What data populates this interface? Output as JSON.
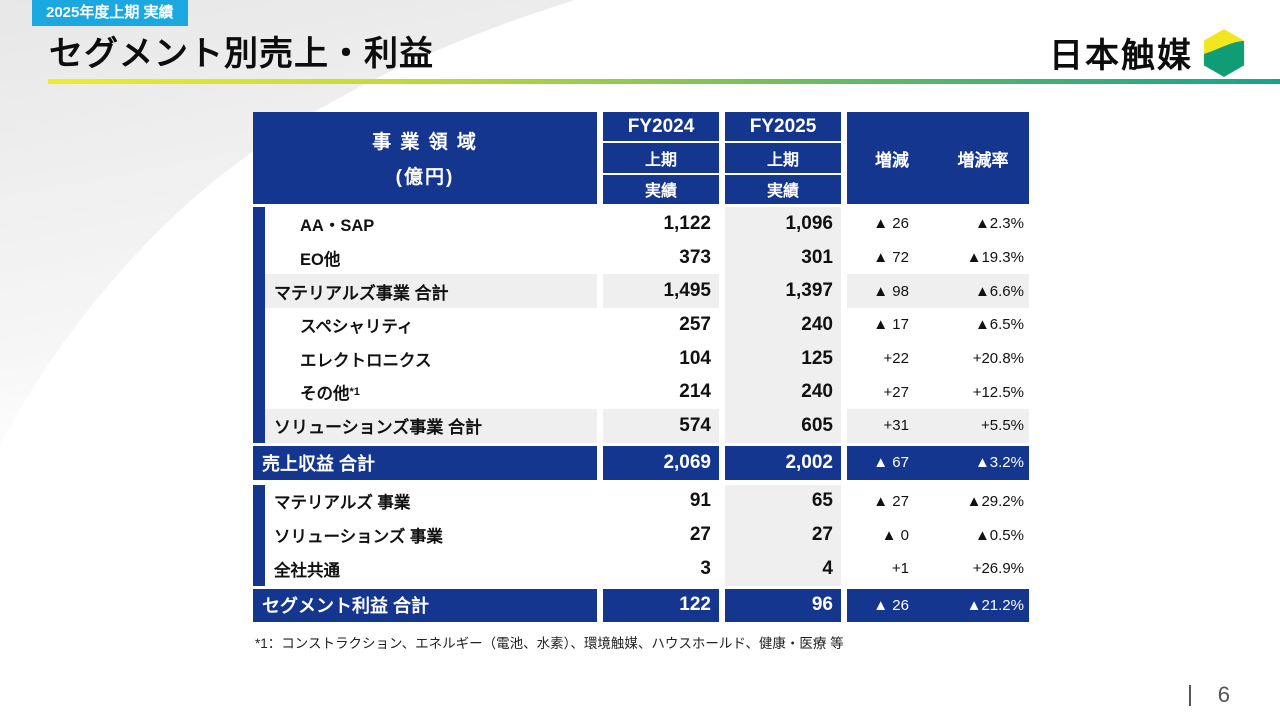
{
  "page": {
    "badge": "2025年度上期 実績",
    "title": "セグメント別売上・利益",
    "logo_text": "日本触媒",
    "footnote": "*1：コンストラクション、エネルギー（電池、水素）、環境触媒、ハウスホールド、健康・医療 等",
    "page_number": "6"
  },
  "colors": {
    "navy": "#15368E",
    "badge_blue": "#1BA7E0",
    "row_gray": "#EFEFEF",
    "rule_gradient": [
      "#EFED27",
      "#17A38C"
    ],
    "logo_yellow": "#F2E71E",
    "logo_green": "#0E9D74"
  },
  "table": {
    "header": {
      "domain_title": "事 業 領 域",
      "domain_unit": "(億円)",
      "fy2024": {
        "year": "FY2024",
        "period": "上期",
        "type": "実績"
      },
      "fy2025": {
        "year": "FY2025",
        "period": "上期",
        "type": "実績"
      },
      "delta_label": "増減",
      "delta_rate_label": "増減率"
    },
    "rows": [
      {
        "label": "AA・SAP",
        "fy2024": "1,122",
        "fy2025": "1,096",
        "delta": "▲ 26",
        "rate": "▲2.3%",
        "style": "indent"
      },
      {
        "label": "EO他",
        "fy2024": "373",
        "fy2025": "301",
        "delta": "▲ 72",
        "rate": "▲19.3%",
        "style": "indent"
      },
      {
        "label": "マテリアルズ事業 合計",
        "fy2024": "1,495",
        "fy2025": "1,397",
        "delta": "▲ 98",
        "rate": "▲6.6%",
        "style": "subtotal"
      },
      {
        "label": "スペシャリティ",
        "fy2024": "257",
        "fy2025": "240",
        "delta": "▲ 17",
        "rate": "▲6.5%",
        "style": "indent"
      },
      {
        "label": "エレクトロニクス",
        "fy2024": "104",
        "fy2025": "125",
        "delta": "+22",
        "rate": "+20.8%",
        "style": "indent"
      },
      {
        "label": "その他",
        "label_sup": "*1",
        "fy2024": "214",
        "fy2025": "240",
        "delta": "+27",
        "rate": "+12.5%",
        "style": "indent"
      },
      {
        "label": "ソリューションズ事業 合計",
        "fy2024": "574",
        "fy2025": "605",
        "delta": "+31",
        "rate": "+5.5%",
        "style": "subtotal"
      },
      {
        "label": "売上収益 合計",
        "fy2024": "2,069",
        "fy2025": "2,002",
        "delta": "▲ 67",
        "rate": "▲3.2%",
        "style": "total"
      },
      {
        "label": "マテリアルズ 事業",
        "fy2024": "91",
        "fy2025": "65",
        "delta": "▲ 27",
        "rate": "▲29.2%",
        "style": "plain",
        "section_start": true
      },
      {
        "label": "ソリューションズ 事業",
        "fy2024": "27",
        "fy2025": "27",
        "delta": "▲ 0",
        "rate": "▲0.5%",
        "style": "plain"
      },
      {
        "label": "全社共通",
        "fy2024": "3",
        "fy2025": "4",
        "delta": "+1",
        "rate": "+26.9%",
        "style": "plain"
      },
      {
        "label": "セグメント利益 合計",
        "fy2024": "122",
        "fy2025": "96",
        "delta": "▲ 26",
        "rate": "▲21.2%",
        "style": "total"
      }
    ]
  }
}
